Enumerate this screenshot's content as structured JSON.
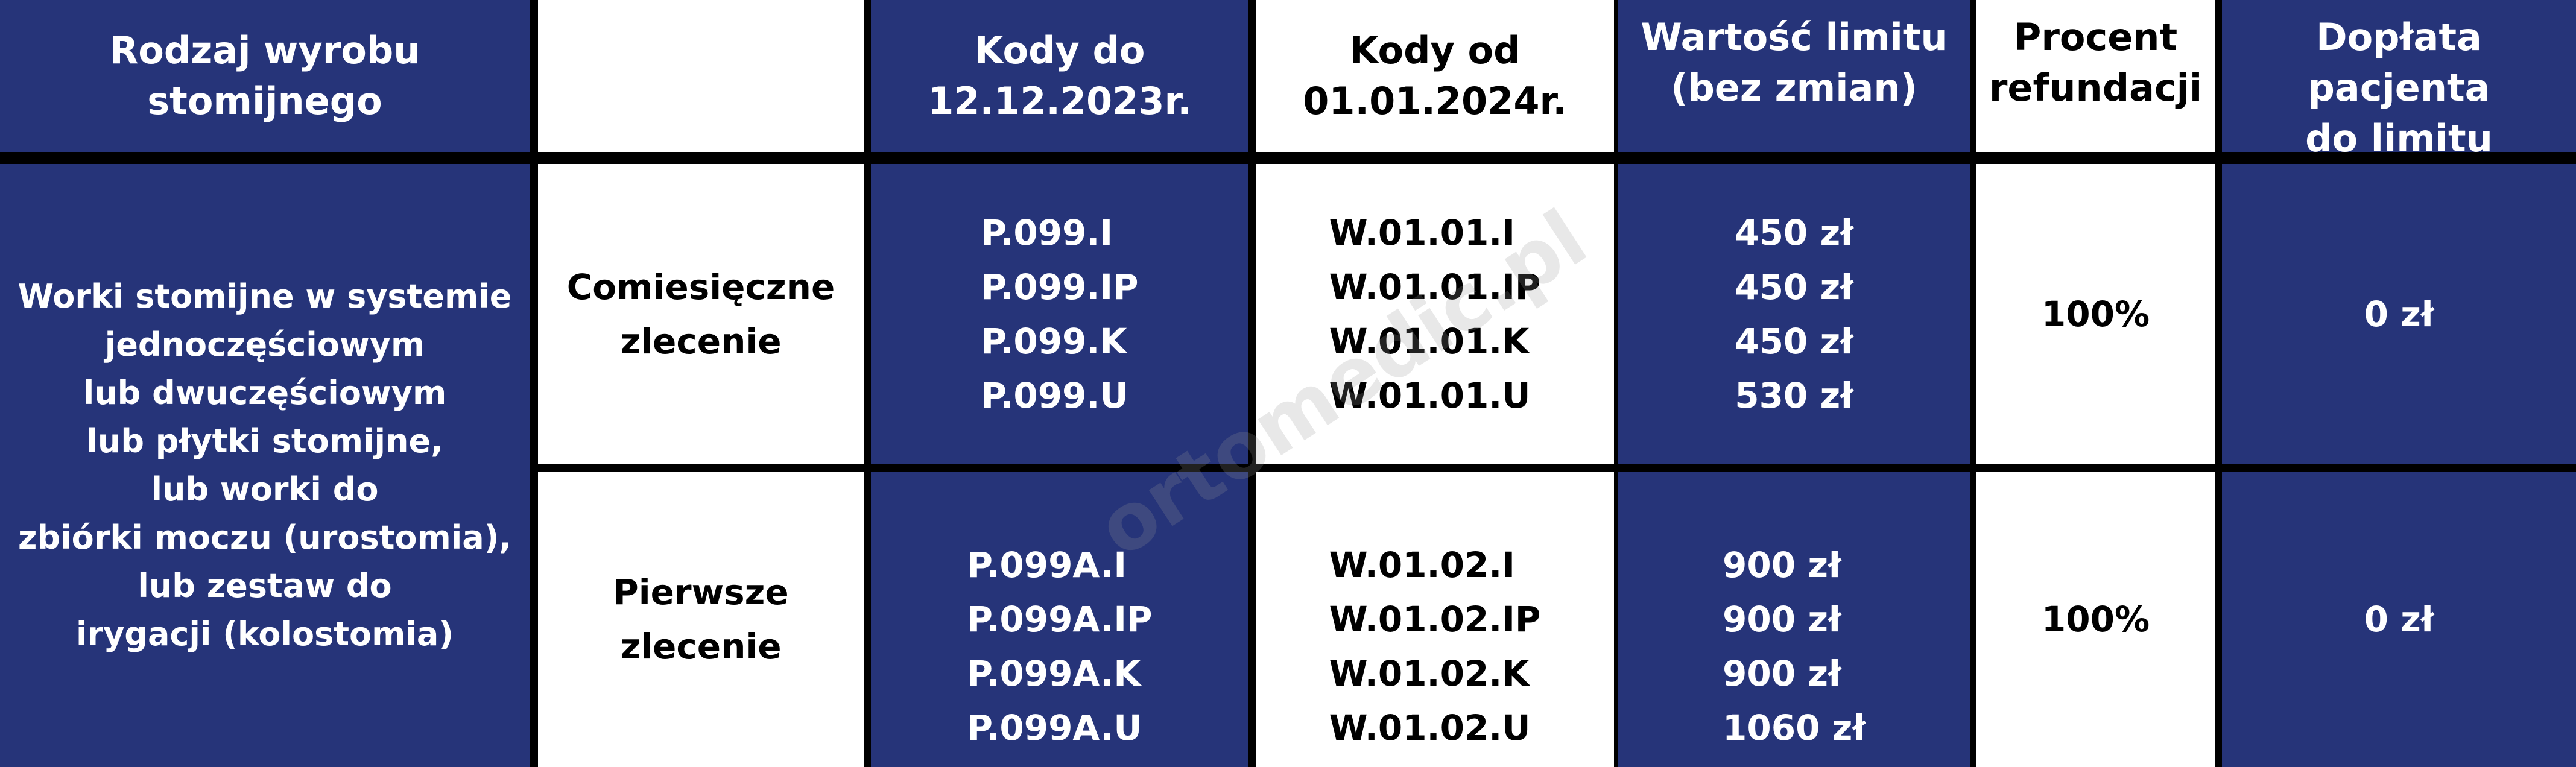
{
  "colors": {
    "blue": "#263479",
    "white": "#ffffff",
    "border": "#000000"
  },
  "header": {
    "col1": [
      "Rodzaj wyrobu",
      "stomijnego"
    ],
    "col3": [
      "Kody do",
      "12.12.2023r."
    ],
    "col4": [
      "Kody od",
      "01.01.2024r."
    ],
    "col5": [
      "Wartość limitu",
      "(bez zmian)"
    ],
    "col6": [
      "Procent",
      "refundacji"
    ],
    "col7": [
      "Dopłata pacjenta",
      "do limitu"
    ]
  },
  "product": [
    "Worki stomijne w systemie",
    "jednoczęściowym",
    "lub dwuczęściowym",
    "lub płytki stomijne,",
    "lub worki do",
    "zbiórki moczu (urostomia),",
    "lub zestaw do",
    "irygacji (kolostomia)"
  ],
  "rows": [
    {
      "order": [
        "Comiesięczne",
        "zlecenie"
      ],
      "old_codes": [
        "P.099.I",
        "P.099.IP",
        "P.099.K",
        "P.099.U"
      ],
      "new_codes": [
        "W.01.01.I",
        "W.01.01.IP",
        "W.01.01.K",
        "W.01.01.U"
      ],
      "limits": [
        "450 zł",
        "450 zł",
        "450 zł",
        "530 zł"
      ],
      "refund": "100%",
      "copay": "0 zł"
    },
    {
      "order": [
        "Pierwsze",
        "zlecenie"
      ],
      "old_codes": [
        "P.099A.I",
        "P.099A.IP",
        "P.099A.K",
        "P.099A.U"
      ],
      "new_codes": [
        "W.01.02.I",
        "W.01.02.IP",
        "W.01.02.K",
        "W.01.02.U"
      ],
      "limits": [
        "900 zł",
        "900 zł",
        "900 zł",
        "1060 zł"
      ],
      "refund": "100%",
      "copay": "0 zł"
    }
  ],
  "watermark": "ortomedic.pl"
}
